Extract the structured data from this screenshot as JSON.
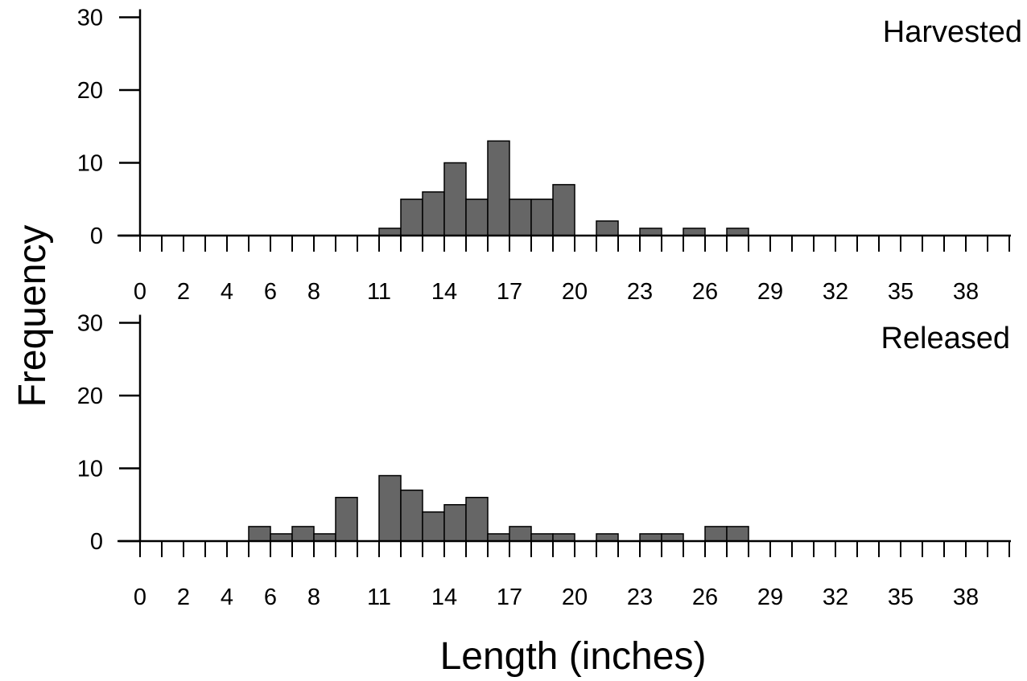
{
  "chart_data": {
    "type": "bar",
    "ylabel": "Frequency",
    "xlabel": "Length (inches)",
    "x_tick_labels": [
      "0",
      "2",
      "4",
      "6",
      "8",
      "11",
      "14",
      "17",
      "20",
      "23",
      "26",
      "29",
      "32",
      "35",
      "38"
    ],
    "x_tick_values": [
      0,
      2,
      4,
      6,
      8,
      11,
      14,
      17,
      20,
      23,
      26,
      29,
      32,
      35,
      38
    ],
    "bin_width": 1,
    "xlim": [
      0,
      40
    ],
    "ylim": [
      0,
      30
    ],
    "y_ticks": [
      0,
      10,
      20,
      30
    ],
    "panels": [
      {
        "title": "Harvested",
        "bars": [
          {
            "x": 11,
            "value": 1
          },
          {
            "x": 12,
            "value": 5
          },
          {
            "x": 13,
            "value": 6
          },
          {
            "x": 14,
            "value": 10
          },
          {
            "x": 15,
            "value": 5
          },
          {
            "x": 16,
            "value": 13
          },
          {
            "x": 17,
            "value": 5
          },
          {
            "x": 18,
            "value": 5
          },
          {
            "x": 19,
            "value": 7
          },
          {
            "x": 21,
            "value": 2
          },
          {
            "x": 23,
            "value": 1
          },
          {
            "x": 25,
            "value": 1
          },
          {
            "x": 27,
            "value": 1
          }
        ]
      },
      {
        "title": "Released",
        "bars": [
          {
            "x": 5,
            "value": 2
          },
          {
            "x": 6,
            "value": 1
          },
          {
            "x": 7,
            "value": 2
          },
          {
            "x": 8,
            "value": 1
          },
          {
            "x": 9,
            "value": 6
          },
          {
            "x": 11,
            "value": 9
          },
          {
            "x": 12,
            "value": 7
          },
          {
            "x": 13,
            "value": 4
          },
          {
            "x": 14,
            "value": 5
          },
          {
            "x": 15,
            "value": 6
          },
          {
            "x": 16,
            "value": 1
          },
          {
            "x": 17,
            "value": 2
          },
          {
            "x": 18,
            "value": 1
          },
          {
            "x": 19,
            "value": 1
          },
          {
            "x": 21,
            "value": 1
          },
          {
            "x": 23,
            "value": 1
          },
          {
            "x": 24,
            "value": 1
          },
          {
            "x": 26,
            "value": 2
          },
          {
            "x": 27,
            "value": 2
          }
        ]
      }
    ],
    "bar_color": "#666666",
    "bar_edge_color": "#000000"
  }
}
